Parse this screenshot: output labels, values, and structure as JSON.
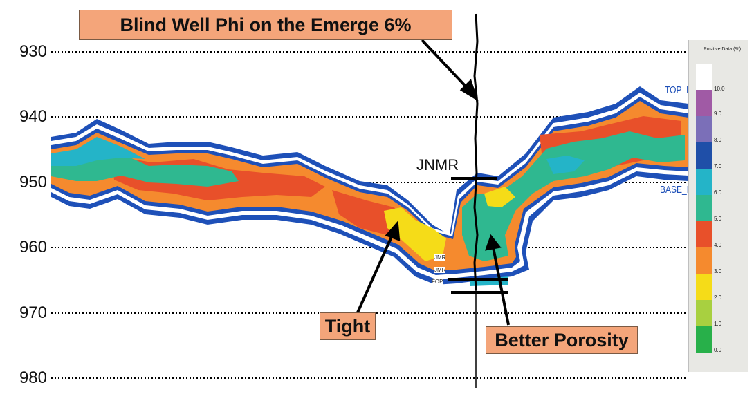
{
  "title_callout": "Blind Well Phi on the Emerge 6%",
  "tight_callout": "Tight",
  "porosity_callout": "Better Porosity",
  "y_axis": {
    "ticks": [
      "930",
      "940",
      "950",
      "960",
      "970",
      "980"
    ]
  },
  "well": {
    "marker": "JNMR",
    "top_limit": "TOP_LIM",
    "base_limit": "BASE_LIM",
    "small_labels": [
      "JMR",
      "JMR",
      "FOP"
    ]
  },
  "legend": {
    "title": "Positive Data (%)",
    "scale": [
      {
        "label": "10.0",
        "color": "#ffffff"
      },
      {
        "label": "9.0",
        "color": "#a05aa5"
      },
      {
        "label": "8.0",
        "color": "#7b6fb8"
      },
      {
        "label": "7.0",
        "color": "#1f4fa8"
      },
      {
        "label": "6.0",
        "color": "#24b4c8"
      },
      {
        "label": "5.0",
        "color": "#2fb890"
      },
      {
        "label": "4.0",
        "color": "#e8502a"
      },
      {
        "label": "3.0",
        "color": "#f58a2e"
      },
      {
        "label": "2.0",
        "color": "#f5dc18"
      },
      {
        "label": "1.0",
        "color": "#a8d040"
      },
      {
        "label": "0.0",
        "color": "#28b04a"
      }
    ]
  },
  "colors": {
    "outline": "#1e50b8",
    "callout": "#f4a57a",
    "gridline": "#000000"
  }
}
